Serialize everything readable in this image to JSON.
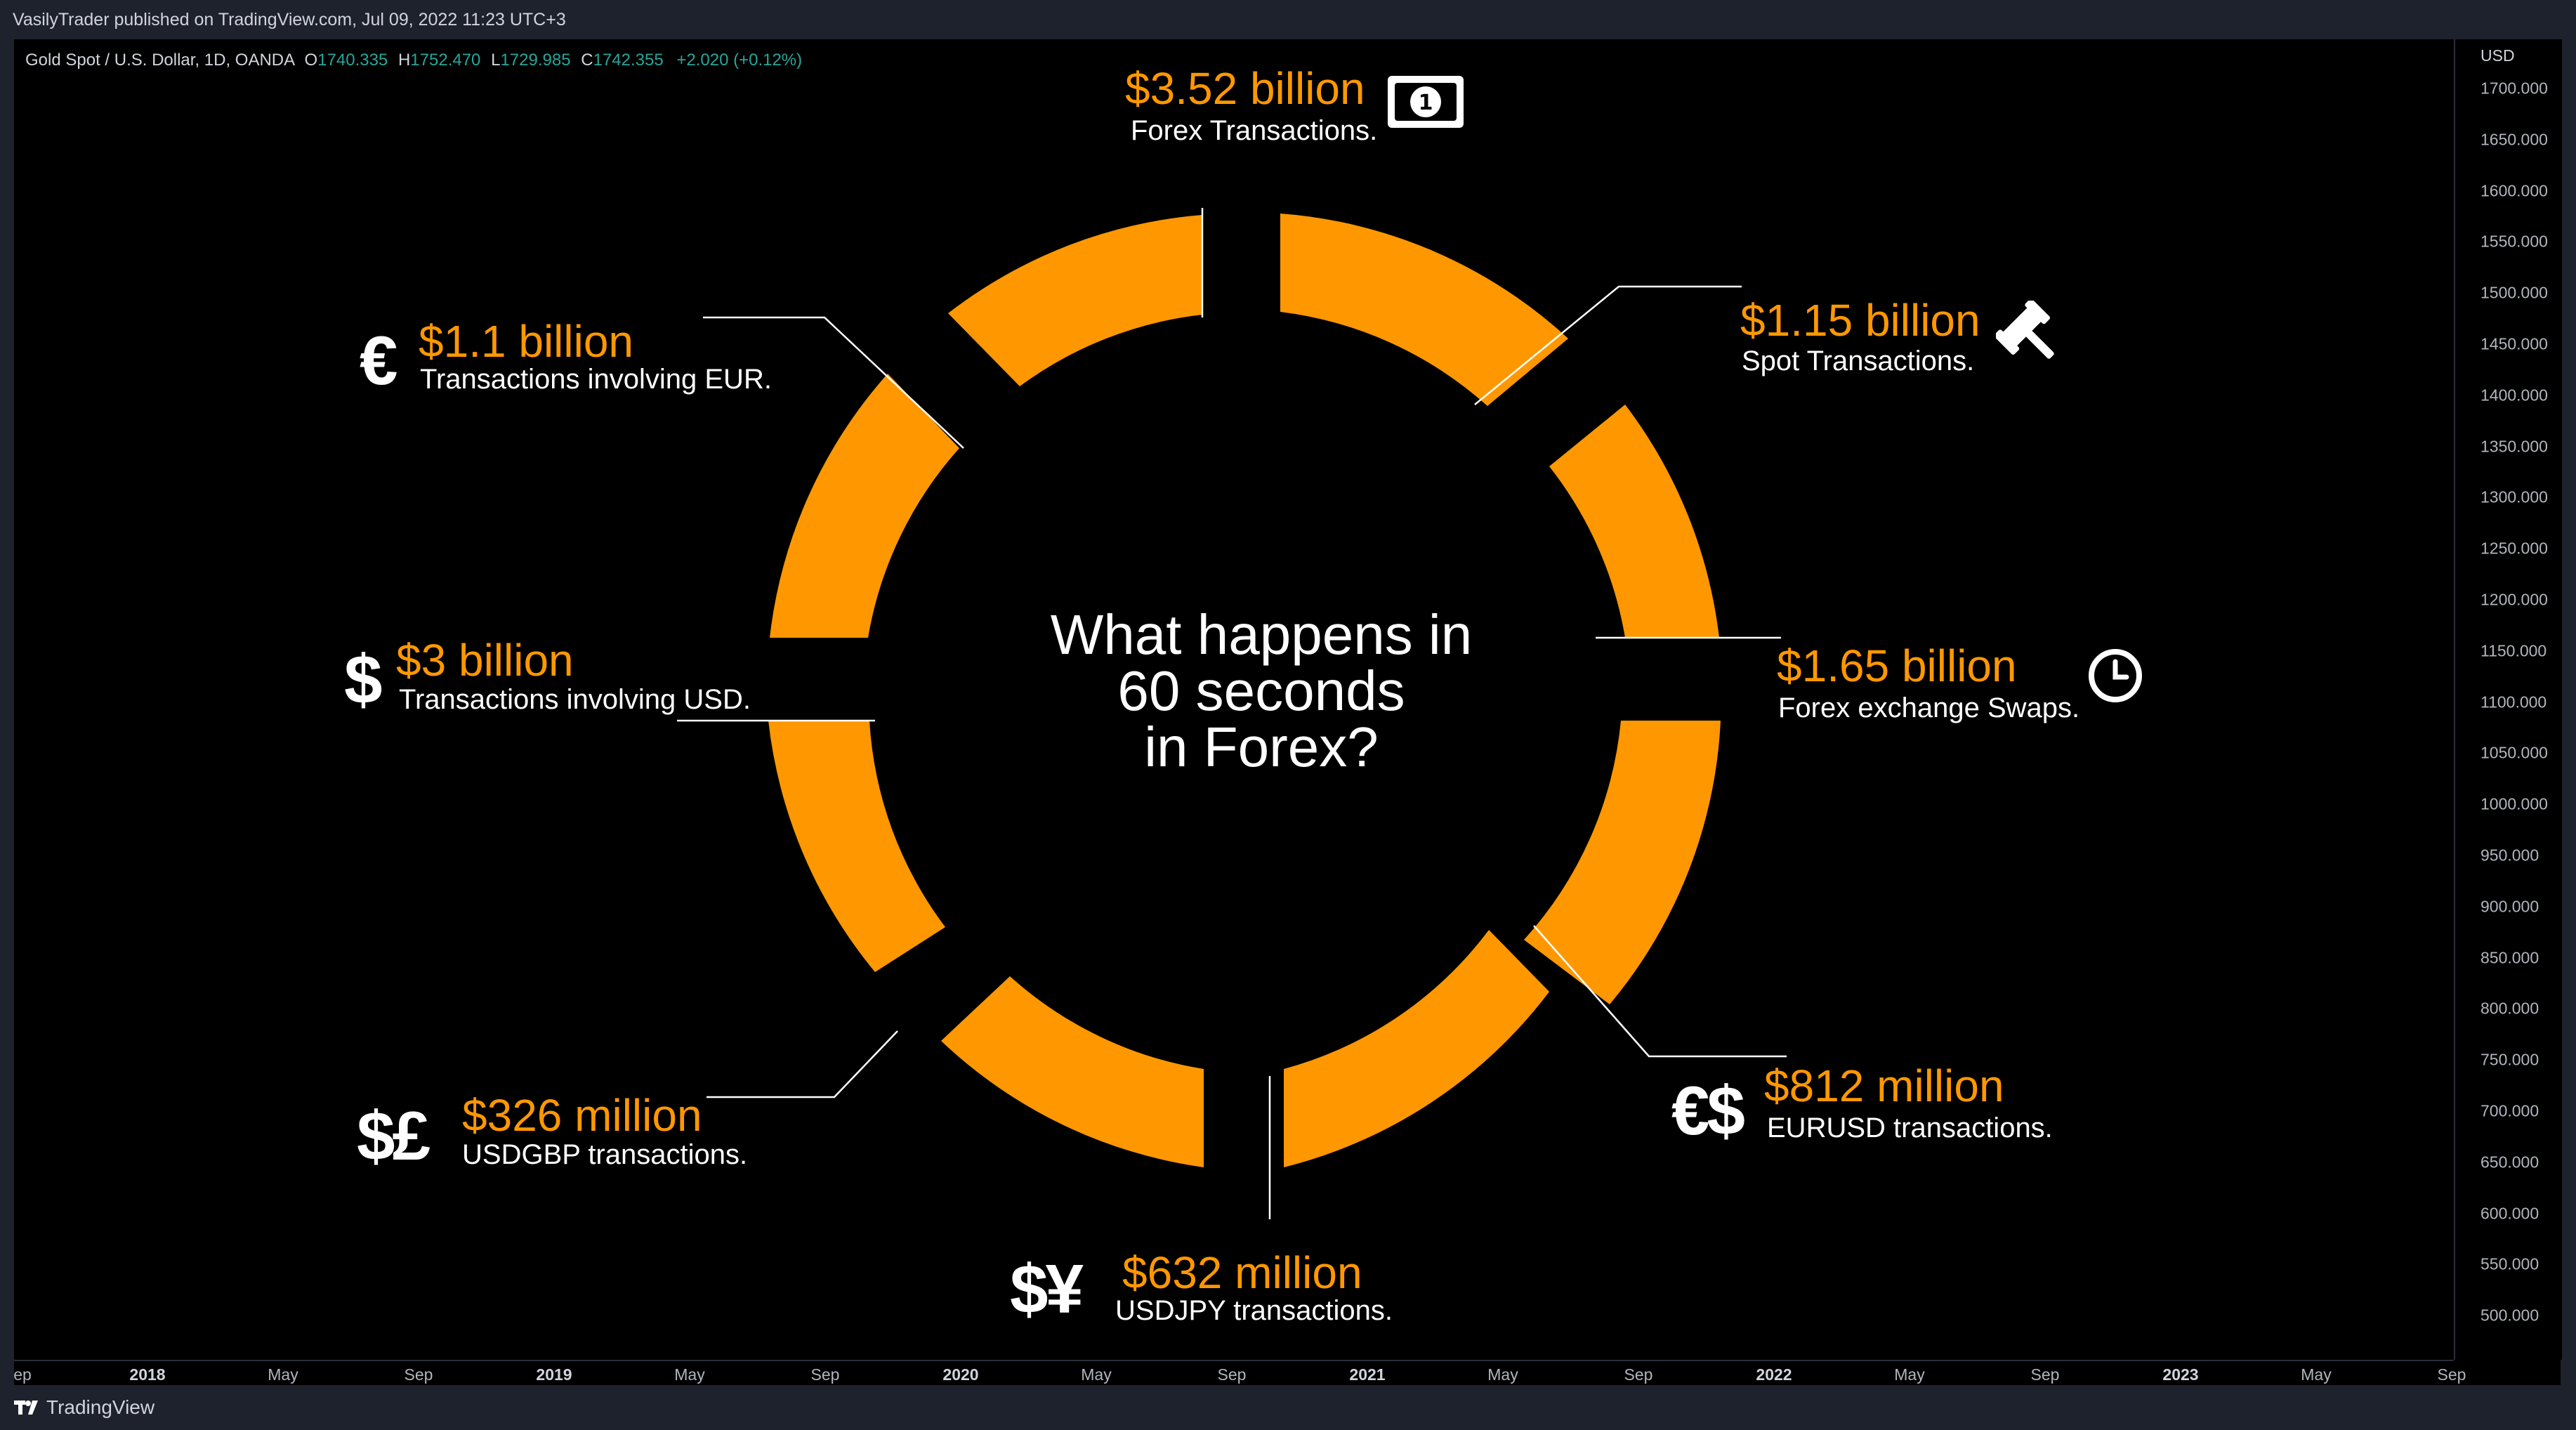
{
  "publish": {
    "text": "VasilyTrader published on TradingView.com, Jul 09, 2022 11:23 UTC+3"
  },
  "symbol": {
    "name": "Gold Spot / U.S. Dollar, 1D, OANDA",
    "open_label": "O",
    "open": "1740.335",
    "high_label": "H",
    "high": "1752.470",
    "low_label": "L",
    "low": "1729.985",
    "close_label": "C",
    "close": "1742.355",
    "change": "+2.020 (+0.12%)"
  },
  "price_axis": {
    "currency": "USD",
    "labels": [
      "1700.000",
      "1650.000",
      "1600.000",
      "1550.000",
      "1500.000",
      "1450.000",
      "1400.000",
      "1350.000",
      "1300.000",
      "1250.000",
      "1200.000",
      "1150.000",
      "1100.000",
      "1050.000",
      "1000.000",
      "950.000",
      "900.000",
      "850.000",
      "800.000",
      "750.000",
      "700.000",
      "650.000",
      "600.000",
      "550.000",
      "500.000"
    ]
  },
  "time_axis": {
    "labels": [
      {
        "text": "ep",
        "year": false
      },
      {
        "text": "2018",
        "year": true
      },
      {
        "text": "May",
        "year": false
      },
      {
        "text": "Sep",
        "year": false
      },
      {
        "text": "2019",
        "year": true
      },
      {
        "text": "May",
        "year": false
      },
      {
        "text": "Sep",
        "year": false
      },
      {
        "text": "2020",
        "year": true
      },
      {
        "text": "May",
        "year": false
      },
      {
        "text": "Sep",
        "year": false
      },
      {
        "text": "2021",
        "year": true
      },
      {
        "text": "May",
        "year": false
      },
      {
        "text": "Sep",
        "year": false
      },
      {
        "text": "2022",
        "year": true
      },
      {
        "text": "May",
        "year": false
      },
      {
        "text": "Sep",
        "year": false
      },
      {
        "text": "2023",
        "year": true
      },
      {
        "text": "May",
        "year": false
      },
      {
        "text": "Sep",
        "year": false
      }
    ]
  },
  "infographic": {
    "accent_color": "#ff9800",
    "title_lines": [
      "What happens in",
      "60 seconds",
      "in Forex?"
    ],
    "items": [
      {
        "amount": "$3.52 billion",
        "desc": "Forex Transactions.",
        "icon": "banknote-icon"
      },
      {
        "amount": "$1.15 billion",
        "desc": "Spot Transactions.",
        "icon": "gavel-icon"
      },
      {
        "amount": "$1.65 billion",
        "desc": "Forex exchange Swaps.",
        "icon": "clock-icon"
      },
      {
        "amount": "$812 million",
        "desc": "EURUSD transactions.",
        "symbols": "€$"
      },
      {
        "amount": "$632 million",
        "desc": "USDJPY transactions.",
        "symbols": "$¥"
      },
      {
        "amount": "$326 million",
        "desc": "USDGBP transactions.",
        "symbols": "$£"
      },
      {
        "amount": "$3 billion",
        "desc": "Transactions involving USD.",
        "symbols": "$"
      },
      {
        "amount": "$1.1 billion",
        "desc": "Transactions involving EUR.",
        "symbols": "€"
      }
    ]
  },
  "footer": {
    "brand": "TradingView"
  }
}
